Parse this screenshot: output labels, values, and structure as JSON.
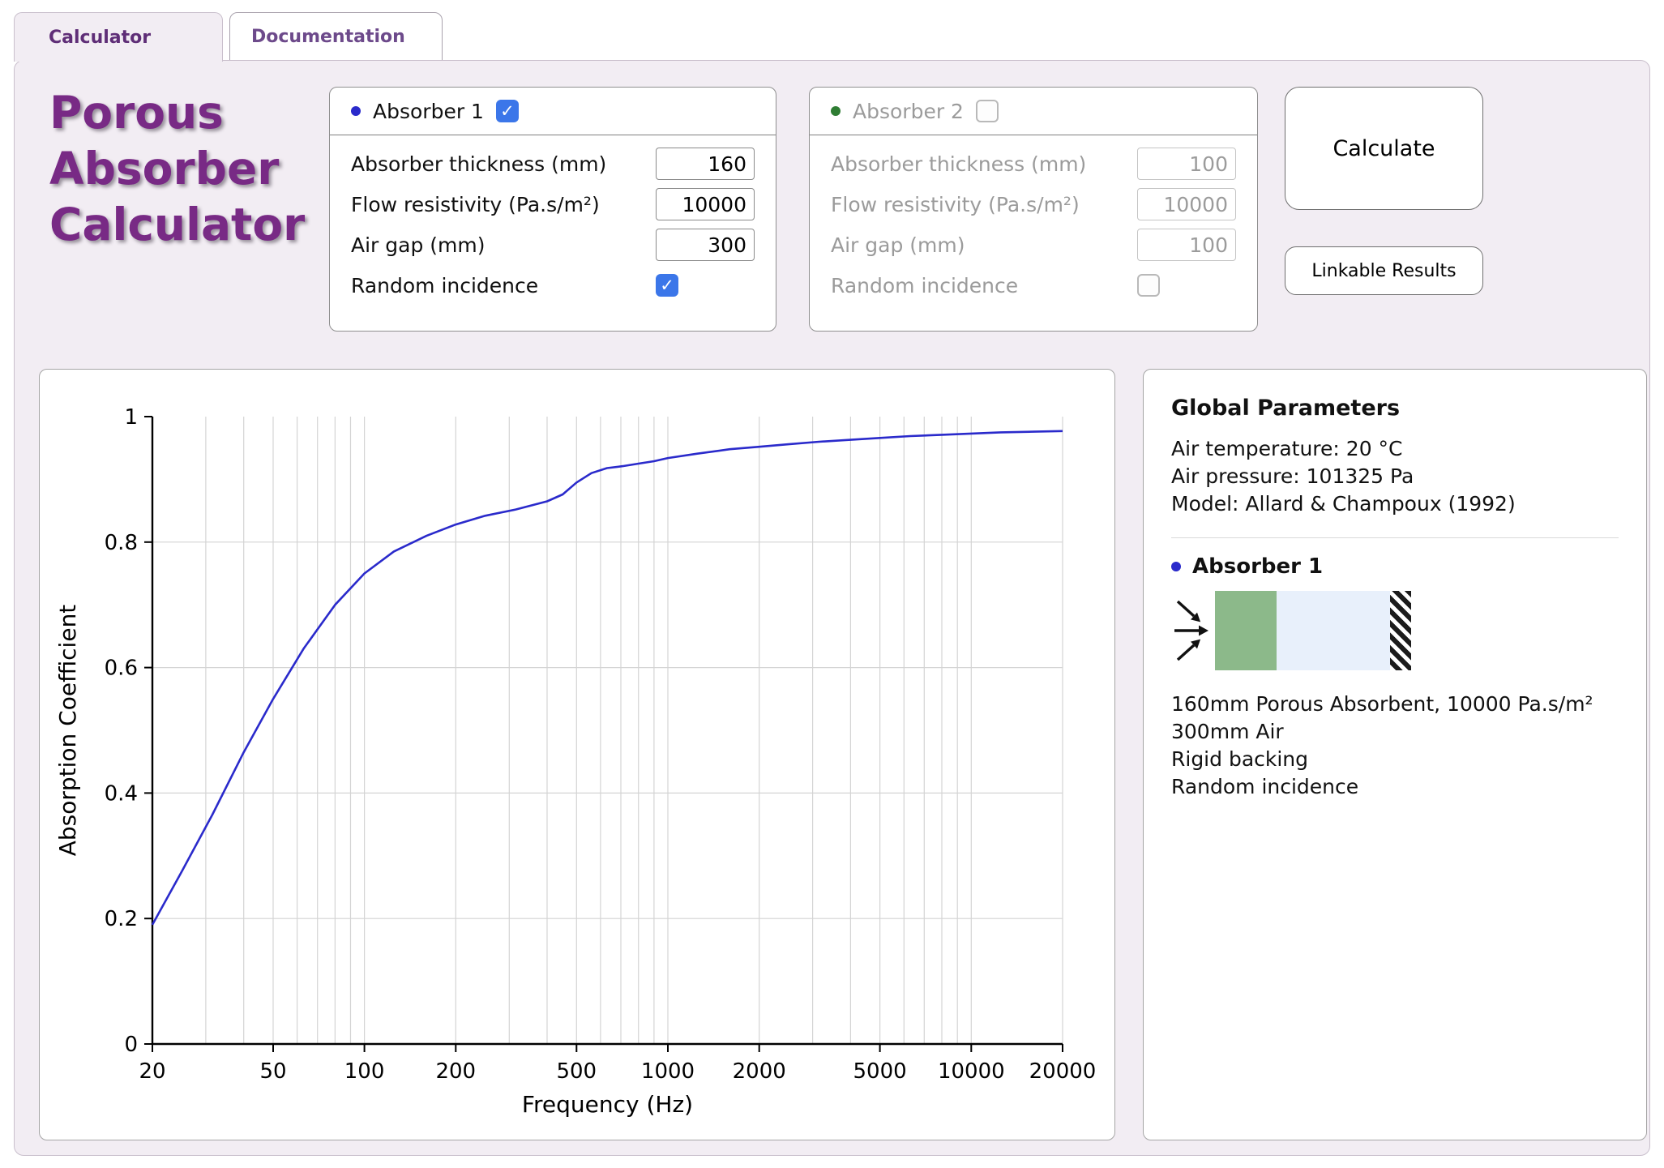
{
  "icons": {
    "check": "✓"
  },
  "tabs": {
    "calculator": "Calculator",
    "documentation": "Documentation"
  },
  "title": {
    "line1": "Porous",
    "line2": "Absorber",
    "line3": "Calculator"
  },
  "buttons": {
    "calculate": "Calculate",
    "linkable_results": "Linkable Results"
  },
  "absorber1": {
    "name": "Absorber 1",
    "enabled": true,
    "thickness_label": "Absorber thickness (mm)",
    "thickness_value": "160",
    "resistivity_label": "Flow resistivity (Pa.s/m²)",
    "resistivity_value": "10000",
    "airgap_label": "Air gap (mm)",
    "airgap_value": "300",
    "random_label": "Random incidence",
    "random_incidence": true,
    "dot_color": "#2a2acb"
  },
  "absorber2": {
    "name": "Absorber 2",
    "enabled": false,
    "thickness_label": "Absorber thickness (mm)",
    "thickness_value": "100",
    "resistivity_label": "Flow resistivity (Pa.s/m²)",
    "resistivity_value": "10000",
    "airgap_label": "Air gap (mm)",
    "airgap_value": "100",
    "random_label": "Random incidence",
    "random_incidence": false,
    "dot_color": "#2f7d33"
  },
  "global_params": {
    "heading": "Global Parameters",
    "air_temperature": "Air temperature: 20 °C",
    "air_pressure": "Air pressure: 101325 Pa",
    "model": "Model: Allard & Champoux (1992)",
    "absorber1_heading": "Absorber 1",
    "desc_line1": "160mm Porous Absorbent, 10000 Pa.s/m²",
    "desc_line2": "300mm Air",
    "desc_line3": "Rigid backing",
    "desc_line4": "Random incidence"
  },
  "chart_data": {
    "type": "line",
    "title": "",
    "xlabel": "Frequency (Hz)",
    "ylabel": "Absorption Coefficient",
    "x_scale": "log",
    "xlim": [
      20,
      20000
    ],
    "ylim": [
      0,
      1
    ],
    "grid": true,
    "legend": "none",
    "x_ticks": [
      20,
      50,
      100,
      200,
      500,
      1000,
      2000,
      5000,
      10000,
      20000
    ],
    "x_tick_labels": [
      "20",
      "50",
      "100",
      "200",
      "500",
      "1000",
      "2000",
      "5000",
      "10000",
      "20000"
    ],
    "y_ticks": [
      0,
      0.2,
      0.4,
      0.6,
      0.8,
      1
    ],
    "y_tick_labels": [
      "0",
      "0.2",
      "0.4",
      "0.6",
      "0.8",
      "1"
    ],
    "minor_gridlines_x": [
      30,
      40,
      50,
      60,
      70,
      80,
      90,
      100,
      200,
      300,
      400,
      500,
      600,
      700,
      800,
      900,
      1000,
      2000,
      3000,
      4000,
      5000,
      6000,
      7000,
      8000,
      9000,
      10000,
      20000
    ],
    "series": [
      {
        "name": "Absorber 1",
        "color": "#2a2acb",
        "x": [
          20,
          25,
          31.5,
          40,
          50,
          63,
          80,
          100,
          125,
          160,
          200,
          250,
          315,
          400,
          450,
          500,
          560,
          630,
          710,
          800,
          900,
          1000,
          1250,
          1600,
          2000,
          2500,
          3150,
          4000,
          5000,
          6300,
          8000,
          10000,
          12500,
          16000,
          20000
        ],
        "y": [
          0.19,
          0.275,
          0.365,
          0.465,
          0.55,
          0.63,
          0.7,
          0.75,
          0.785,
          0.81,
          0.828,
          0.842,
          0.852,
          0.865,
          0.876,
          0.895,
          0.91,
          0.918,
          0.921,
          0.925,
          0.929,
          0.934,
          0.941,
          0.948,
          0.952,
          0.956,
          0.96,
          0.963,
          0.966,
          0.969,
          0.971,
          0.973,
          0.975,
          0.976,
          0.977
        ]
      }
    ]
  }
}
